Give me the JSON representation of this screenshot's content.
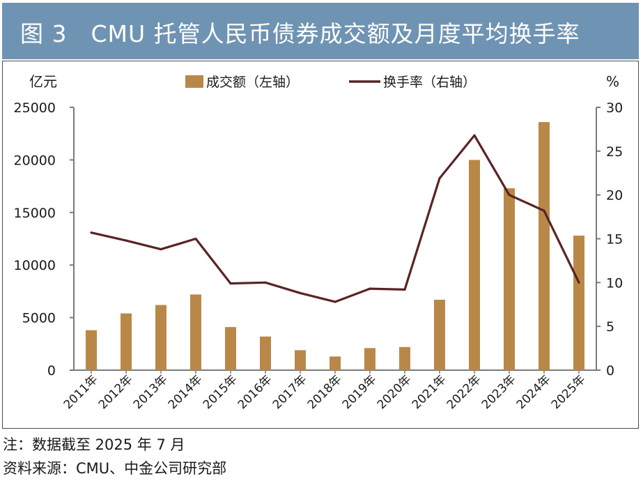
{
  "title": "图 3　CMU 托管人民币债券成交额及月度平均换手率",
  "colors": {
    "title_bg": "#6f93b3",
    "bar": "#b98849",
    "line": "#5a2323",
    "axis": "#7a7a7a"
  },
  "chart_data": {
    "type": "bar+line",
    "categories": [
      "2011年",
      "2012年",
      "2013年",
      "2014年",
      "2015年",
      "2016年",
      "2017年",
      "2018年",
      "2019年",
      "2020年",
      "2021年",
      "2022年",
      "2023年",
      "2024年",
      "2025年"
    ],
    "series": [
      {
        "name": "成交额（左轴）",
        "type": "bar",
        "axis": "left",
        "values": [
          3800,
          5400,
          6200,
          7200,
          4100,
          3200,
          1900,
          1300,
          2100,
          2200,
          6700,
          20000,
          17300,
          23600,
          12800
        ]
      },
      {
        "name": "换手率（右轴）",
        "type": "line",
        "axis": "right",
        "values": [
          15.7,
          14.8,
          13.8,
          15.0,
          9.9,
          10.0,
          8.8,
          7.8,
          9.3,
          9.2,
          21.9,
          26.8,
          20.0,
          18.2,
          10.0
        ]
      }
    ],
    "left_axis": {
      "label": "亿元",
      "min": 0,
      "max": 25000,
      "ticks": [
        0,
        5000,
        10000,
        15000,
        20000,
        25000
      ]
    },
    "right_axis": {
      "label": "%",
      "min": 0,
      "max": 30,
      "ticks": [
        0,
        5,
        10,
        15,
        20,
        25,
        30
      ]
    },
    "legend": [
      {
        "label": "成交额（左轴）",
        "kind": "bar"
      },
      {
        "label": "换手率（右轴）",
        "kind": "line"
      }
    ],
    "legend_position": "top-center"
  },
  "notes": {
    "note_line": "注：数据截至 2025 年 7 月",
    "source_line": "资料来源：CMU、中金公司研究部"
  }
}
